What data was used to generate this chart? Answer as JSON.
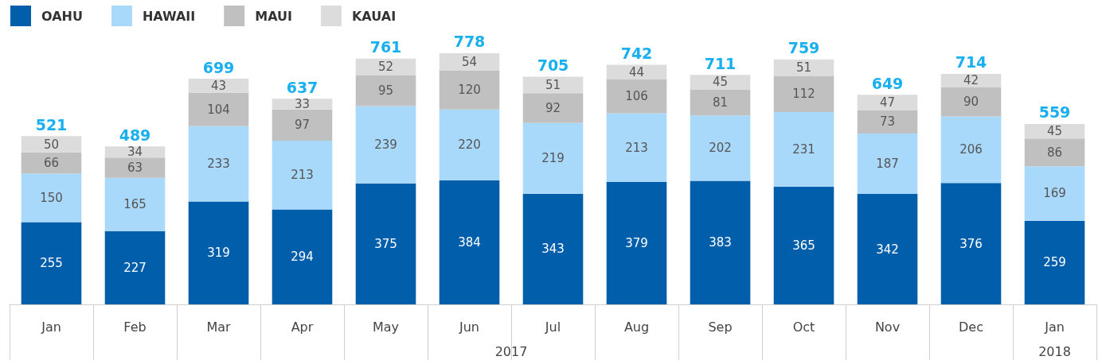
{
  "chart_data": {
    "type": "bar",
    "stacked": true,
    "data_labels": true,
    "legend": "top left",
    "categories": [
      "Jan",
      "Feb",
      "Mar",
      "Apr",
      "May",
      "Jun",
      "Jul",
      "Aug",
      "Sep",
      "Oct",
      "Nov",
      "Dec",
      "Jan"
    ],
    "series": [
      {
        "name": "OAHU",
        "color": "#005eaa",
        "values": [
          255,
          227,
          319,
          294,
          375,
          384,
          343,
          379,
          383,
          365,
          342,
          376,
          259
        ]
      },
      {
        "name": "HAWAII",
        "color": "#a8d8fa",
        "values": [
          150,
          165,
          233,
          213,
          239,
          220,
          219,
          213,
          202,
          231,
          187,
          206,
          169
        ]
      },
      {
        "name": "MAUI",
        "color": "#c0c0c0",
        "values": [
          66,
          63,
          104,
          97,
          95,
          120,
          92,
          106,
          81,
          112,
          73,
          90,
          86
        ]
      },
      {
        "name": "KAUAI",
        "color": "#dcdcdc",
        "values": [
          50,
          34,
          43,
          33,
          52,
          54,
          51,
          44,
          45,
          51,
          47,
          42,
          45
        ]
      }
    ],
    "totals": [
      "521",
      "489",
      "699",
      "637",
      "761",
      "778",
      "705",
      "742",
      "711",
      "759",
      "649",
      "714",
      "559"
    ],
    "annotations": [
      "2017",
      "2018"
    ]
  }
}
